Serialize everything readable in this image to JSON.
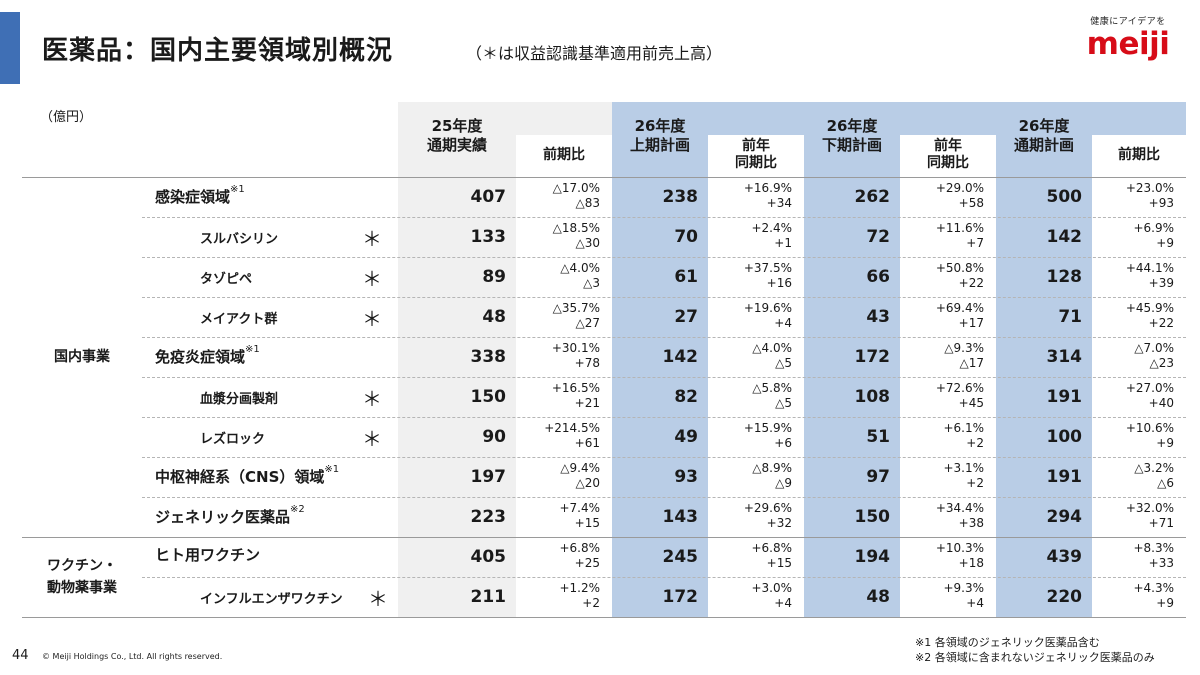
{
  "header": {
    "title": "医薬品：国内主要領域別概況",
    "subtitle": "（＊は収益認識基準適用前売上高）"
  },
  "logo": {
    "tagline": "健康にアイデアを",
    "wordmark": "meiji"
  },
  "unit_label": "（億円）",
  "columns": {
    "fy25_actual": "25年度\n通期実績",
    "fy25_ratio": "前期比",
    "h1_plan": "26年度\n上期計画",
    "h1_ratio": "前年\n同期比",
    "h2_plan": "26年度\n下期計画",
    "h2_ratio": "前年\n同期比",
    "fy26_plan": "26年度\n通期計画",
    "fy26_ratio": "前期比"
  },
  "segments": [
    {
      "label": "国内事業"
    },
    {
      "label": "ワクチン・\n動物薬事業"
    }
  ],
  "rows": [
    {
      "label": "感染症領域",
      "note": "※1",
      "star": "",
      "fy25": "407",
      "fy25_ratio": "△17.0%\n△83",
      "h1": "238",
      "h1_ratio": "+16.9%\n+34",
      "h2": "262",
      "h2_ratio": "+29.0%\n+58",
      "fy26": "500",
      "fy26_ratio": "+23.0%\n+93"
    },
    {
      "label": "スルバシリン",
      "note": "",
      "star": "＊",
      "fy25": "133",
      "fy25_ratio": "△18.5%\n△30",
      "h1": "70",
      "h1_ratio": "+2.4%\n+1",
      "h2": "72",
      "h2_ratio": "+11.6%\n+7",
      "fy26": "142",
      "fy26_ratio": "+6.9%\n+9"
    },
    {
      "label": "タゾピペ",
      "note": "",
      "star": "＊",
      "fy25": "89",
      "fy25_ratio": "△4.0%\n△3",
      "h1": "61",
      "h1_ratio": "+37.5%\n+16",
      "h2": "66",
      "h2_ratio": "+50.8%\n+22",
      "fy26": "128",
      "fy26_ratio": "+44.1%\n+39"
    },
    {
      "label": "メイアクト群",
      "note": "",
      "star": "＊",
      "fy25": "48",
      "fy25_ratio": "△35.7%\n△27",
      "h1": "27",
      "h1_ratio": "+19.6%\n+4",
      "h2": "43",
      "h2_ratio": "+69.4%\n+17",
      "fy26": "71",
      "fy26_ratio": "+45.9%\n+22"
    },
    {
      "label": "免疫炎症領域",
      "note": "※1",
      "star": "",
      "fy25": "338",
      "fy25_ratio": "+30.1%\n+78",
      "h1": "142",
      "h1_ratio": "△4.0%\n△5",
      "h2": "172",
      "h2_ratio": "△9.3%\n△17",
      "fy26": "314",
      "fy26_ratio": "△7.0%\n△23"
    },
    {
      "label": "血漿分画製剤",
      "note": "",
      "star": "＊",
      "fy25": "150",
      "fy25_ratio": "+16.5%\n+21",
      "h1": "82",
      "h1_ratio": "△5.8%\n△5",
      "h2": "108",
      "h2_ratio": "+72.6%\n+45",
      "fy26": "191",
      "fy26_ratio": "+27.0%\n+40"
    },
    {
      "label": "レズロック",
      "note": "",
      "star": "＊",
      "fy25": "90",
      "fy25_ratio": "+214.5%\n+61",
      "h1": "49",
      "h1_ratio": "+15.9%\n+6",
      "h2": "51",
      "h2_ratio": "+6.1%\n+2",
      "fy26": "100",
      "fy26_ratio": "+10.6%\n+9"
    },
    {
      "label": "中枢神経系（CNS）領域",
      "note": "※1",
      "star": "",
      "fy25": "197",
      "fy25_ratio": "△9.4%\n△20",
      "h1": "93",
      "h1_ratio": "△8.9%\n△9",
      "h2": "97",
      "h2_ratio": "+3.1%\n+2",
      "fy26": "191",
      "fy26_ratio": "△3.2%\n△6"
    },
    {
      "label": "ジェネリック医薬品",
      "note": "※2",
      "star": "",
      "fy25": "223",
      "fy25_ratio": "+7.4%\n+15",
      "h1": "143",
      "h1_ratio": "+29.6%\n+32",
      "h2": "150",
      "h2_ratio": "+34.4%\n+38",
      "fy26": "294",
      "fy26_ratio": "+32.0%\n+71"
    },
    {
      "label": "ヒト用ワクチン",
      "note": "",
      "star": "",
      "fy25": "405",
      "fy25_ratio": "+6.8%\n+25",
      "h1": "245",
      "h1_ratio": "+6.8%\n+15",
      "h2": "194",
      "h2_ratio": "+10.3%\n+18",
      "fy26": "439",
      "fy26_ratio": "+8.3%\n+33"
    },
    {
      "label": "インフルエンザワクチン",
      "note": "",
      "star": "＊",
      "fy25": "211",
      "fy25_ratio": "+1.2%\n+2",
      "h1": "172",
      "h1_ratio": "+3.0%\n+4",
      "h2": "48",
      "h2_ratio": "+9.3%\n+4",
      "fy26": "220",
      "fy26_ratio": "+4.3%\n+9"
    }
  ],
  "footer": {
    "page_number": "44",
    "copyright": "© Meiji Holdings Co., Ltd. All rights reserved.",
    "notes": [
      "※1 各領域のジェネリック医薬品含む",
      "※2 各領域に含まれないジェネリック医薬品のみ"
    ]
  },
  "colors": {
    "accent": "#3f6fb5",
    "plan_column": "#b9cde6",
    "actual_column": "#f0f0f0",
    "logo_red": "#d70c18"
  }
}
